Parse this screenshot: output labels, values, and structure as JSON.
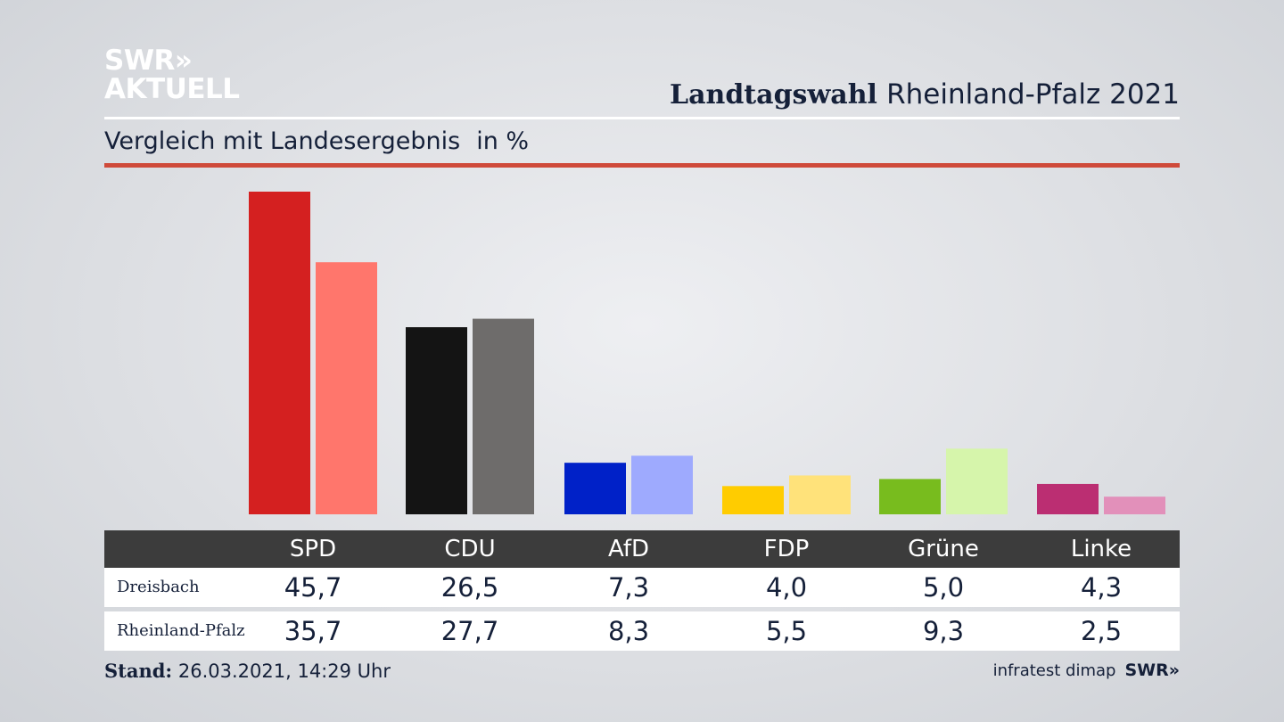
{
  "brand": {
    "logo_line1": "SWR»",
    "logo_line2": "AKTUELL"
  },
  "header": {
    "title_bold": "Landtagswahl",
    "title_regular": "Rheinland-Pfalz 2021"
  },
  "subtitle": {
    "text": "Vergleich mit Landesergebnis",
    "unit": "in %"
  },
  "footer": {
    "stand_label": "Stand:",
    "stand_value": "26.03.2021, 14:29 Uhr",
    "source": "infratest dimap",
    "source_brand": "SWR»"
  },
  "table": {
    "headers": [
      "SPD",
      "CDU",
      "AfD",
      "FDP",
      "Grüne",
      "Linke"
    ],
    "rows": [
      {
        "label": "Dreisbach",
        "values": [
          "45,7",
          "26,5",
          "7,3",
          "4,0",
          "5,0",
          "4,3"
        ]
      },
      {
        "label": "Rheinland-Pfalz",
        "values": [
          "35,7",
          "27,7",
          "8,3",
          "5,5",
          "9,3",
          "2,5"
        ]
      }
    ]
  },
  "chart_data": {
    "type": "bar",
    "categories": [
      "SPD",
      "CDU",
      "AfD",
      "FDP",
      "Grüne",
      "Linke"
    ],
    "series": [
      {
        "name": "Dreisbach",
        "values": [
          45.7,
          26.5,
          7.3,
          4.0,
          5.0,
          4.3
        ],
        "colors": [
          "#d42020",
          "#141414",
          "#0021c8",
          "#ffcc00",
          "#78bc1e",
          "#bb2e72"
        ]
      },
      {
        "name": "Rheinland-Pfalz",
        "values": [
          35.7,
          27.7,
          8.3,
          5.5,
          9.3,
          2.5
        ],
        "colors": [
          "#ff766c",
          "#6e6c6b",
          "#9eaafe",
          "#ffe27a",
          "#d6f5ab",
          "#e290ba"
        ]
      }
    ],
    "title": "Landtagswahl Rheinland-Pfalz 2021",
    "subtitle": "Vergleich mit Landesergebnis",
    "ylabel": "",
    "unit": "in %",
    "ylim": [
      0,
      45.7
    ],
    "grid": false,
    "legend": "none"
  }
}
